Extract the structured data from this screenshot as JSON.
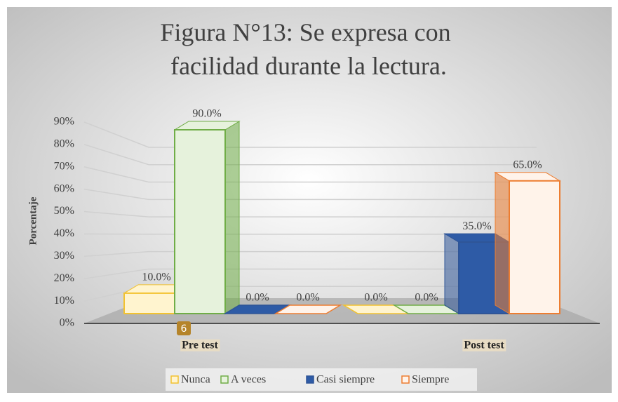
{
  "chart_data": {
    "type": "bar3d",
    "title": "Figura N°13: Se expresa con facilidad durante la lectura.",
    "y_label": "Porcentaje",
    "badge": "6",
    "categories": [
      "Pre test",
      "Post test"
    ],
    "series": [
      {
        "name": "Nunca",
        "color": "#f2c230",
        "fill": "#fff4cf",
        "values": [
          10,
          0
        ],
        "value_labels": [
          "10.0%",
          "0.0%"
        ]
      },
      {
        "name": "A veces",
        "color": "#70ad47",
        "fill": "#e6f2dc",
        "values": [
          90,
          0
        ],
        "value_labels": [
          "90.0%",
          "0.0%"
        ]
      },
      {
        "name": "Casi siempre",
        "color": "#2f5597",
        "fill": "#2e5ba6",
        "values": [
          0,
          35
        ],
        "value_labels": [
          "0.0%",
          "35.0%"
        ]
      },
      {
        "name": "Siempre",
        "color": "#ed7d31",
        "fill": "#fff3ea",
        "values": [
          0,
          65
        ],
        "value_labels": [
          "0.0%",
          "65.0%"
        ]
      }
    ],
    "ylim": [
      0,
      90
    ],
    "yticks": [
      {
        "value": 0,
        "label": "0%"
      },
      {
        "value": 10,
        "label": "10%"
      },
      {
        "value": 20,
        "label": "20%"
      },
      {
        "value": 30,
        "label": "30%"
      },
      {
        "value": 40,
        "label": "40%"
      },
      {
        "value": 50,
        "label": "50%"
      },
      {
        "value": 60,
        "label": "60%"
      },
      {
        "value": 70,
        "label": "70%"
      },
      {
        "value": 80,
        "label": "80%"
      },
      {
        "value": 90,
        "label": "90%"
      }
    ],
    "grid": true
  }
}
